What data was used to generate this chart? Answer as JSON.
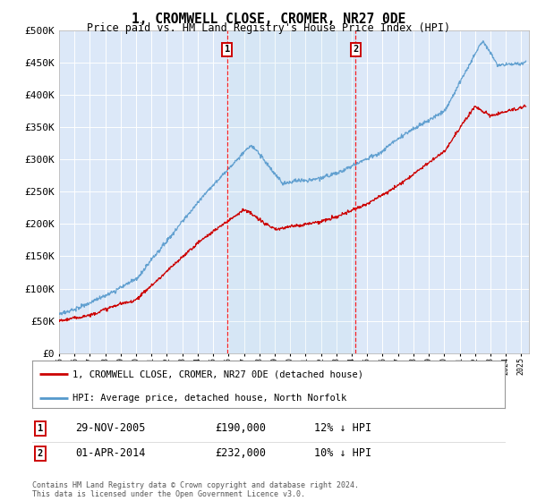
{
  "title": "1, CROMWELL CLOSE, CROMER, NR27 0DE",
  "subtitle": "Price paid vs. HM Land Registry's House Price Index (HPI)",
  "plot_bg_color": "#dce8f8",
  "ylim": [
    0,
    500000
  ],
  "yticks": [
    0,
    50000,
    100000,
    150000,
    200000,
    250000,
    300000,
    350000,
    400000,
    450000,
    500000
  ],
  "ytick_labels": [
    "£0",
    "£50K",
    "£100K",
    "£150K",
    "£200K",
    "£250K",
    "£300K",
    "£350K",
    "£400K",
    "£450K",
    "£500K"
  ],
  "xlim_start": 1995.0,
  "xlim_end": 2025.5,
  "sale1_date": 2005.91,
  "sale1_price": 190000,
  "sale1_label": "1",
  "sale2_date": 2014.25,
  "sale2_price": 232000,
  "sale2_label": "2",
  "legend_line1": "1, CROMWELL CLOSE, CROMER, NR27 0DE (detached house)",
  "legend_line2": "HPI: Average price, detached house, North Norfolk",
  "table_row1": [
    "1",
    "29-NOV-2005",
    "£190,000",
    "12% ↓ HPI"
  ],
  "table_row2": [
    "2",
    "01-APR-2014",
    "£232,000",
    "10% ↓ HPI"
  ],
  "footnote": "Contains HM Land Registry data © Crown copyright and database right 2024.\nThis data is licensed under the Open Government Licence v3.0.",
  "line_red": "#cc0000",
  "line_blue": "#5599cc"
}
